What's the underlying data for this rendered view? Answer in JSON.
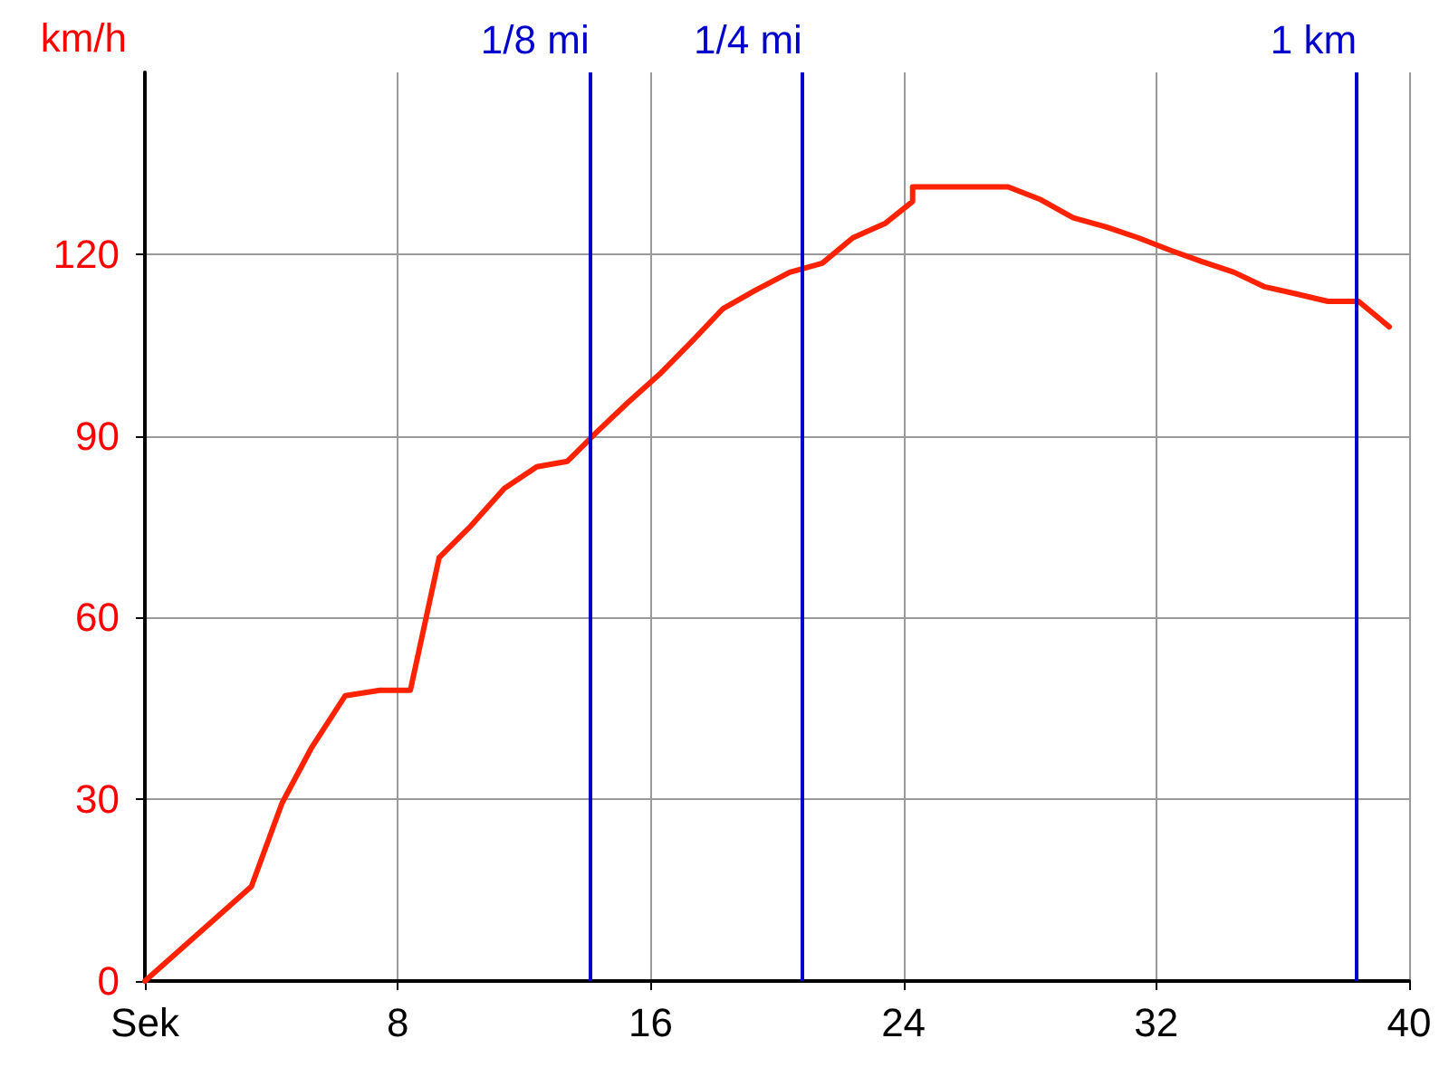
{
  "chart_data": {
    "type": "line",
    "ylabel": "km/h",
    "x": [
      0,
      3.37,
      4.34,
      5.26,
      6.34,
      7.43,
      8.4,
      9.31,
      10.29,
      11.37,
      12.4,
      13.37,
      14.29,
      15.26,
      16.29,
      17.31,
      18.29,
      19.31,
      20.4,
      21.43,
      22.4,
      23.43,
      24.29,
      24.29,
      25.43,
      27.31,
      28.34,
      29.37,
      30.4,
      31.43,
      32.46,
      33.43,
      34.46,
      35.43,
      36.46,
      37.43,
      38.4,
      39.37
    ],
    "series": [
      {
        "color": "#ff2200",
        "values": [
          0,
          15.6,
          29.4,
          38.4,
          47.1,
          48,
          48,
          69.9,
          75,
          81.3,
          84.9,
          85.8,
          90.6,
          95.4,
          100.2,
          105.6,
          111,
          114,
          117,
          118.5,
          122.7,
          125.1,
          128.7,
          131.1,
          131.1,
          131.1,
          129,
          126,
          124.5,
          122.7,
          120.6,
          118.8,
          117,
          114.6,
          113.4,
          112.2,
          112.2,
          108
        ]
      }
    ],
    "xlim": [
      0,
      40
    ],
    "xticks": [
      {
        "value": 0,
        "label": "Sek"
      },
      8,
      16,
      24,
      32,
      40
    ],
    "ylim": [
      0,
      150
    ],
    "yticks": [
      0,
      30,
      60,
      90,
      120
    ],
    "ref_lines": [
      {
        "axis": "x",
        "value": 14.06,
        "label": "1/8 mi",
        "color": "#0000cc"
      },
      {
        "axis": "x",
        "value": 20.8,
        "label": "1/4 mi",
        "color": "#0000cc"
      },
      {
        "axis": "x",
        "value": 38.34,
        "label": "1 km",
        "color": "#0000cc"
      }
    ],
    "grid": true,
    "marker": "none",
    "line_style": "solid"
  }
}
